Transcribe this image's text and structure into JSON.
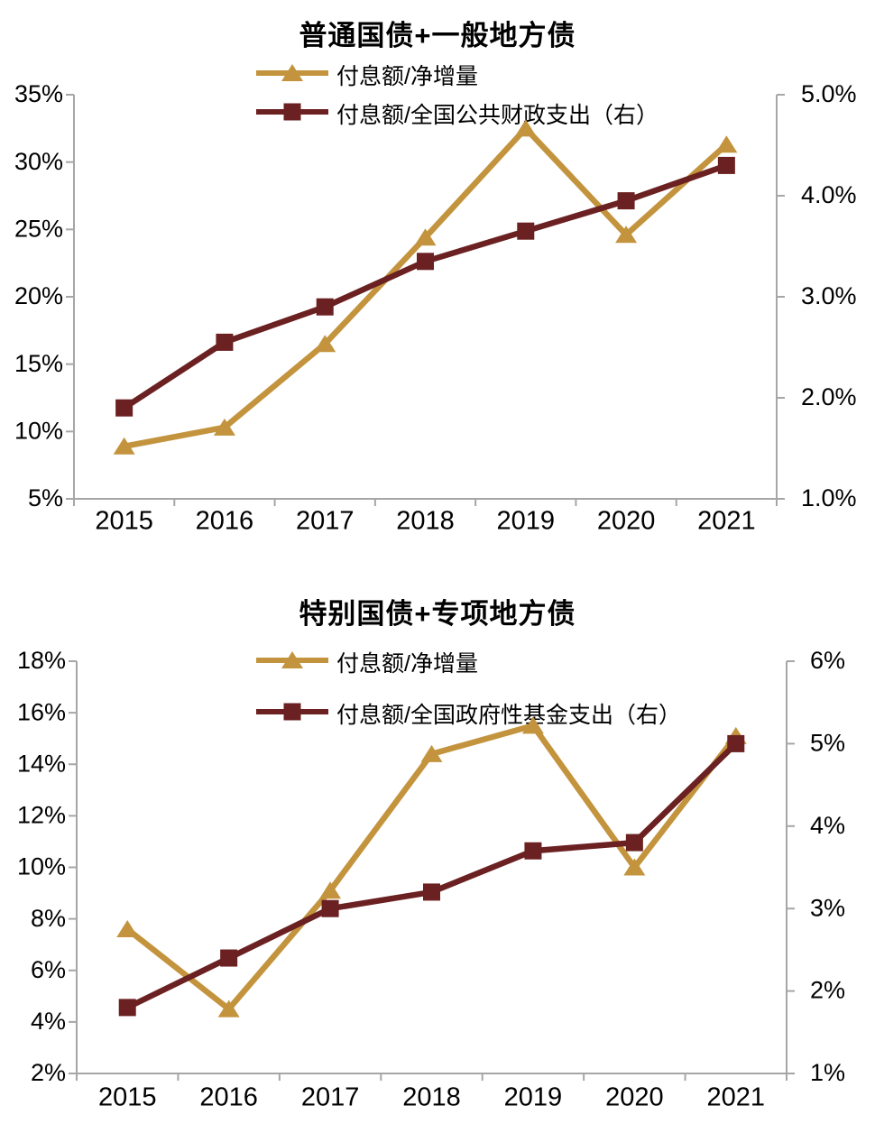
{
  "colors": {
    "gold": "#C3943D",
    "maroon": "#6B2021",
    "axis": "#A6A6A6",
    "text": "#000000"
  },
  "chart_data": [
    {
      "type": "line",
      "title": "普通国债+一般地方债",
      "categories": [
        "2015",
        "2016",
        "2017",
        "2018",
        "2019",
        "2020",
        "2021"
      ],
      "left_axis": {
        "min": 5,
        "max": 35,
        "ticks": [
          "35%",
          "30%",
          "25%",
          "20%",
          "15%",
          "10%",
          "5%"
        ]
      },
      "right_axis": {
        "min": 1,
        "max": 5,
        "ticks": [
          "5.0%",
          "4.0%",
          "3.0%",
          "2.0%",
          "1.0%"
        ]
      },
      "grid": "off",
      "legend_position": "top",
      "series": [
        {
          "name": "付息额/净增量",
          "axis": "left",
          "marker": "triangle",
          "color": "#C3943D",
          "values": [
            8.9,
            10.3,
            16.5,
            24.4,
            32.5,
            24.6,
            31.3
          ]
        },
        {
          "name": "付息额/全国公共财政支出（右）",
          "axis": "right",
          "marker": "square",
          "color": "#6B2021",
          "values": [
            1.9,
            2.55,
            2.9,
            3.35,
            3.65,
            3.95,
            4.3
          ]
        }
      ]
    },
    {
      "type": "line",
      "title": "特别国债+专项地方债",
      "categories": [
        "2015",
        "2016",
        "2017",
        "2018",
        "2019",
        "2020",
        "2021"
      ],
      "left_axis": {
        "min": 2,
        "max": 18,
        "ticks": [
          "18%",
          "16%",
          "14%",
          "12%",
          "10%",
          "8%",
          "6%",
          "4%",
          "2%"
        ]
      },
      "right_axis": {
        "min": 1,
        "max": 6,
        "ticks": [
          "6%",
          "5%",
          "4%",
          "3%",
          "2%",
          "1%"
        ]
      },
      "grid": "off",
      "legend_position": "top",
      "series": [
        {
          "name": "付息额/净增量",
          "axis": "left",
          "marker": "triangle",
          "color": "#C3943D",
          "values": [
            7.6,
            4.5,
            9.1,
            14.4,
            15.5,
            10.0,
            15.1
          ]
        },
        {
          "name": "付息额/全国政府性基金支出（右）",
          "axis": "right",
          "marker": "square",
          "color": "#6B2021",
          "values": [
            1.8,
            2.4,
            3.0,
            3.2,
            3.7,
            3.8,
            5.0
          ]
        }
      ]
    }
  ]
}
